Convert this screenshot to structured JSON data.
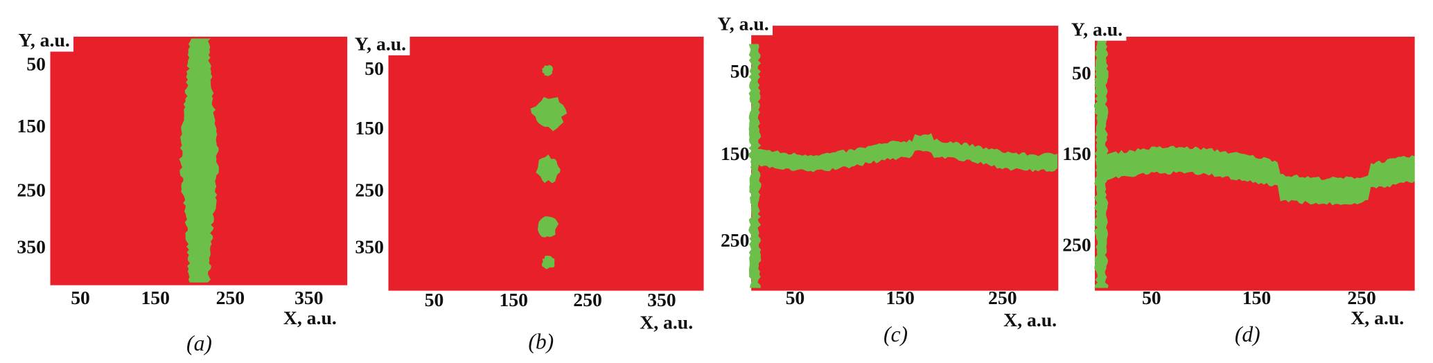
{
  "panels": [
    {
      "caption": "(a)",
      "y_label": "Y, a.u.",
      "x_label": "X, a.u.",
      "yticks": [
        "50",
        "150",
        "250",
        "350"
      ],
      "xticks": [
        "50",
        "150",
        "250",
        "350"
      ]
    },
    {
      "caption": "(b)",
      "y_label": "Y, a.u.",
      "x_label": "X, a.u.",
      "yticks": [
        "50",
        "150",
        "250",
        "350"
      ],
      "xticks": [
        "50",
        "150",
        "250",
        "350"
      ]
    },
    {
      "caption": "(c)",
      "y_label": "Y, a.u.",
      "x_label": "X, a.u.",
      "yticks": [
        "50",
        "150",
        "250"
      ],
      "xticks": [
        "50",
        "150",
        "250"
      ]
    },
    {
      "caption": "(d)",
      "y_label": "Y, a.u.",
      "x_label": "X, a.u.",
      "yticks": [
        "50",
        "150",
        "250"
      ],
      "xticks": [
        "50",
        "150",
        "250"
      ]
    }
  ]
}
